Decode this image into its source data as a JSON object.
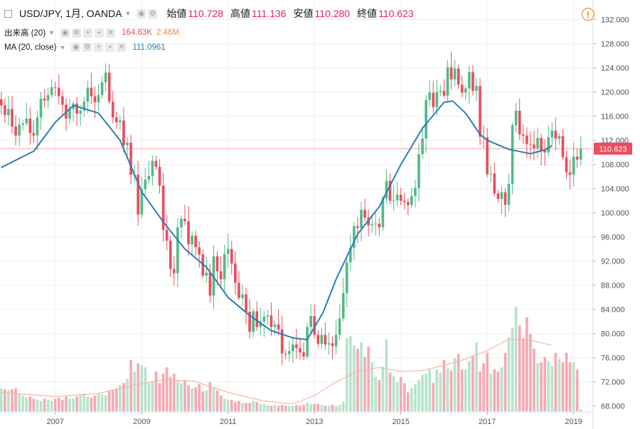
{
  "legend": {
    "symbol": "USD/JPY, 1月, OANDA",
    "ohlc": [
      {
        "label": "始値",
        "value": "110.728"
      },
      {
        "label": "高値",
        "value": "111.136"
      },
      {
        "label": "安値",
        "value": "110.280"
      },
      {
        "label": "終値",
        "value": "110.623"
      }
    ],
    "volume": {
      "label": "出来高 (20)",
      "value1": "164.63K",
      "value2": "2.46M"
    },
    "ma": {
      "label": "MA (20, close)",
      "value": "111.0961"
    }
  },
  "last_price_label": "110.623",
  "colors": {
    "up": "#53b987",
    "down": "#eb4d5c",
    "ma": "#2a7fb2",
    "vol_up": "#b7e3cd",
    "vol_down": "#f5a9b3",
    "vol_ma": "#f5b7a0",
    "price_line": "#f5a6a6"
  },
  "chart_data": {
    "type": "candlestick",
    "title": "USD/JPY, 1月, OANDA",
    "y_ticks": [
      "132.000",
      "128.000",
      "124.000",
      "120.000",
      "116.000",
      "112.000",
      "108.000",
      "104.000",
      "100.000",
      "96.000",
      "92.000",
      "88.000",
      "84.000",
      "80.000",
      "76.000",
      "72.000",
      "68.000"
    ],
    "x_ticks": [
      "2007",
      "2009",
      "2011",
      "2013",
      "2015",
      "2017",
      "2019"
    ],
    "ylim": [
      67.5,
      133
    ],
    "xlim": [
      2005.72,
      2019.45
    ],
    "first_candle": 2005.75,
    "closes": [
      117.8,
      116.2,
      117.2,
      114.3,
      112.8,
      114.6,
      114.8,
      115.6,
      113.2,
      112.8,
      115.8,
      118.9,
      118.6,
      119.5,
      120.8,
      120.7,
      119.3,
      117.9,
      115.6,
      117.2,
      118.1,
      116.4,
      116.9,
      118.4,
      120.7,
      119.3,
      118.3,
      119.5,
      121.6,
      123.2,
      118.4,
      115.8,
      115.0,
      115.3,
      111.2,
      111.6,
      106.3,
      106.3,
      99.7,
      103.9,
      105.5,
      106.1,
      108.6,
      107.6,
      104.5,
      97.2,
      95.4,
      90.7,
      90.0,
      97.6,
      99.0,
      98.6,
      94.8,
      96.2,
      94.3,
      93.1,
      89.6,
      90.1,
      86.3,
      92.8,
      90.3,
      89.0,
      93.2,
      94.0,
      91.6,
      88.4,
      85.9,
      86.5,
      83.6,
      80.3,
      83.7,
      81.1,
      82.0,
      82.8,
      83.0,
      81.1,
      81.5,
      80.7,
      76.7,
      76.6,
      77.1,
      78.2,
      77.6,
      76.9,
      76.2,
      81.1,
      82.9,
      79.8,
      78.3,
      79.8,
      78.2,
      78.4,
      77.9,
      79.8,
      82.5,
      86.7,
      91.8,
      94.2,
      97.8,
      97.5,
      100.5,
      99.2,
      97.9,
      98.1,
      98.2,
      97.6,
      102.4,
      105.3,
      102.0,
      102.1,
      103.0,
      102.0,
      101.8,
      101.3,
      102.8,
      104.1,
      109.7,
      112.3,
      118.7,
      119.9,
      117.5,
      120.0,
      120.2,
      119.4,
      124.1,
      122.1,
      123.9,
      121.2,
      119.9,
      120.6,
      123.3,
      120.2,
      121.0,
      112.6,
      112.5,
      106.4,
      106.5,
      103.2,
      102.3,
      103.4,
      101.3,
      104.8,
      114.5,
      116.9,
      113.0,
      112.8,
      111.4,
      111.3,
      110.7,
      112.4,
      110.3,
      110.0,
      112.5,
      113.6,
      112.3,
      112.7,
      109.2,
      106.7,
      106.3,
      109.3,
      108.8,
      110.6
    ],
    "ma20_sampled": [
      {
        "x": 2005.75,
        "y": 107.5
      },
      {
        "x": 2006.5,
        "y": 110.2
      },
      {
        "x": 2007.0,
        "y": 115.0
      },
      {
        "x": 2007.42,
        "y": 117.8
      },
      {
        "x": 2008.0,
        "y": 116.5
      },
      {
        "x": 2008.5,
        "y": 112.0
      },
      {
        "x": 2009.0,
        "y": 103.5
      },
      {
        "x": 2009.5,
        "y": 98.5
      },
      {
        "x": 2010.0,
        "y": 94.0
      },
      {
        "x": 2010.5,
        "y": 91.0
      },
      {
        "x": 2011.0,
        "y": 86.0
      },
      {
        "x": 2011.5,
        "y": 83.0
      },
      {
        "x": 2012.0,
        "y": 80.5
      },
      {
        "x": 2012.5,
        "y": 79.3
      },
      {
        "x": 2012.83,
        "y": 79.0
      },
      {
        "x": 2013.2,
        "y": 83.5
      },
      {
        "x": 2013.5,
        "y": 89.0
      },
      {
        "x": 2014.0,
        "y": 96.5
      },
      {
        "x": 2014.5,
        "y": 101.0
      },
      {
        "x": 2015.0,
        "y": 108.0
      },
      {
        "x": 2015.5,
        "y": 114.0
      },
      {
        "x": 2016.0,
        "y": 118.3
      },
      {
        "x": 2016.2,
        "y": 118.5
      },
      {
        "x": 2016.5,
        "y": 116.5
      },
      {
        "x": 2016.83,
        "y": 113.0
      },
      {
        "x": 2017.0,
        "y": 112.0
      },
      {
        "x": 2017.5,
        "y": 110.5
      },
      {
        "x": 2018.0,
        "y": 109.8
      },
      {
        "x": 2018.33,
        "y": 110.4
      },
      {
        "x": 2018.5,
        "y": 111.1
      }
    ],
    "volume": {
      "ylim": [
        0,
        100
      ],
      "values": [
        22,
        21,
        20,
        21,
        22,
        17,
        15,
        13,
        14,
        12,
        11,
        10,
        12,
        11,
        10,
        12,
        13,
        11,
        14,
        12,
        12,
        14,
        16,
        17,
        14,
        13,
        15,
        17,
        16,
        15,
        19,
        20,
        22,
        25,
        27,
        31,
        49,
        38,
        46,
        44,
        42,
        27,
        29,
        38,
        27,
        36,
        42,
        33,
        36,
        30,
        27,
        30,
        25,
        22,
        23,
        26,
        19,
        20,
        28,
        23,
        20,
        15,
        12,
        11,
        11,
        9,
        10,
        8,
        8,
        8,
        10,
        9,
        7,
        7,
        6,
        5,
        6,
        5,
        6,
        5,
        5,
        5,
        6,
        5,
        6,
        8,
        7,
        7,
        7,
        6,
        5,
        5,
        6,
        5,
        6,
        9,
        70,
        72,
        63,
        60,
        66,
        52,
        62,
        47,
        33,
        30,
        43,
        69,
        37,
        34,
        28,
        33,
        27,
        18,
        22,
        26,
        30,
        35,
        36,
        40,
        27,
        40,
        37,
        49,
        41,
        39,
        51,
        55,
        40,
        40,
        48,
        53,
        66,
        38,
        46,
        56,
        36,
        40,
        38,
        42,
        56,
        71,
        80,
        100,
        82,
        70,
        90,
        74,
        60,
        46,
        47,
        52,
        48,
        43,
        56,
        50,
        47,
        56,
        47,
        47,
        40,
        2
      ],
      "ma_sampled": [
        {
          "x": 2005.75,
          "y": 18
        },
        {
          "x": 2007.0,
          "y": 14
        },
        {
          "x": 2008.0,
          "y": 17
        },
        {
          "x": 2008.8,
          "y": 25
        },
        {
          "x": 2009.5,
          "y": 30
        },
        {
          "x": 2010.2,
          "y": 29
        },
        {
          "x": 2011.0,
          "y": 18
        },
        {
          "x": 2011.8,
          "y": 10
        },
        {
          "x": 2012.5,
          "y": 7
        },
        {
          "x": 2013.0,
          "y": 15
        },
        {
          "x": 2013.5,
          "y": 28
        },
        {
          "x": 2014.0,
          "y": 38
        },
        {
          "x": 2014.5,
          "y": 42
        },
        {
          "x": 2015.0,
          "y": 38
        },
        {
          "x": 2015.5,
          "y": 39
        },
        {
          "x": 2016.0,
          "y": 44
        },
        {
          "x": 2016.5,
          "y": 50
        },
        {
          "x": 2017.0,
          "y": 58
        },
        {
          "x": 2017.5,
          "y": 69
        },
        {
          "x": 2018.0,
          "y": 68
        },
        {
          "x": 2018.5,
          "y": 63
        }
      ]
    }
  }
}
